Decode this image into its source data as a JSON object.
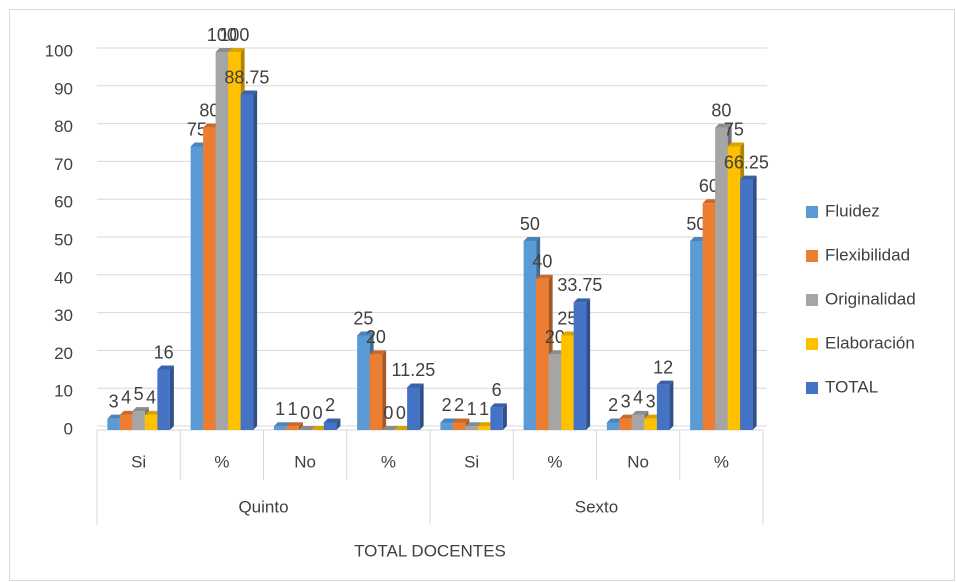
{
  "chart_data": {
    "type": "bar3d",
    "x_label": "TOTAL DOCENTES",
    "categories": [
      "Si",
      "%",
      "No",
      "%",
      "Si",
      "%",
      "No",
      "%"
    ],
    "groups": [
      "Quinto",
      "Sexto"
    ],
    "series": [
      {
        "name": "Fluidez",
        "color": "#5b9bd5",
        "values": [
          3,
          75,
          1,
          25,
          2,
          50,
          2,
          50
        ]
      },
      {
        "name": "Flexibilidad",
        "color": "#ed7d31",
        "values": [
          4,
          80,
          1,
          20,
          2,
          40,
          3,
          60
        ]
      },
      {
        "name": "Originalidad",
        "color": "#a5a5a5",
        "values": [
          5,
          100,
          0,
          0,
          1,
          20,
          4,
          80
        ]
      },
      {
        "name": "Elaboración",
        "color": "#ffc000",
        "values": [
          4,
          100,
          0,
          0,
          1,
          25,
          3,
          75
        ]
      },
      {
        "name": "TOTAL",
        "color": "#4472c4",
        "values": [
          16,
          88.75,
          2,
          11.25,
          6,
          33.75,
          12,
          66.25
        ]
      }
    ],
    "ylim": [
      0,
      100
    ],
    "yticks": [
      0,
      10,
      20,
      30,
      40,
      50,
      60,
      70,
      80,
      90,
      100
    ],
    "grid": true,
    "legend": "right"
  }
}
